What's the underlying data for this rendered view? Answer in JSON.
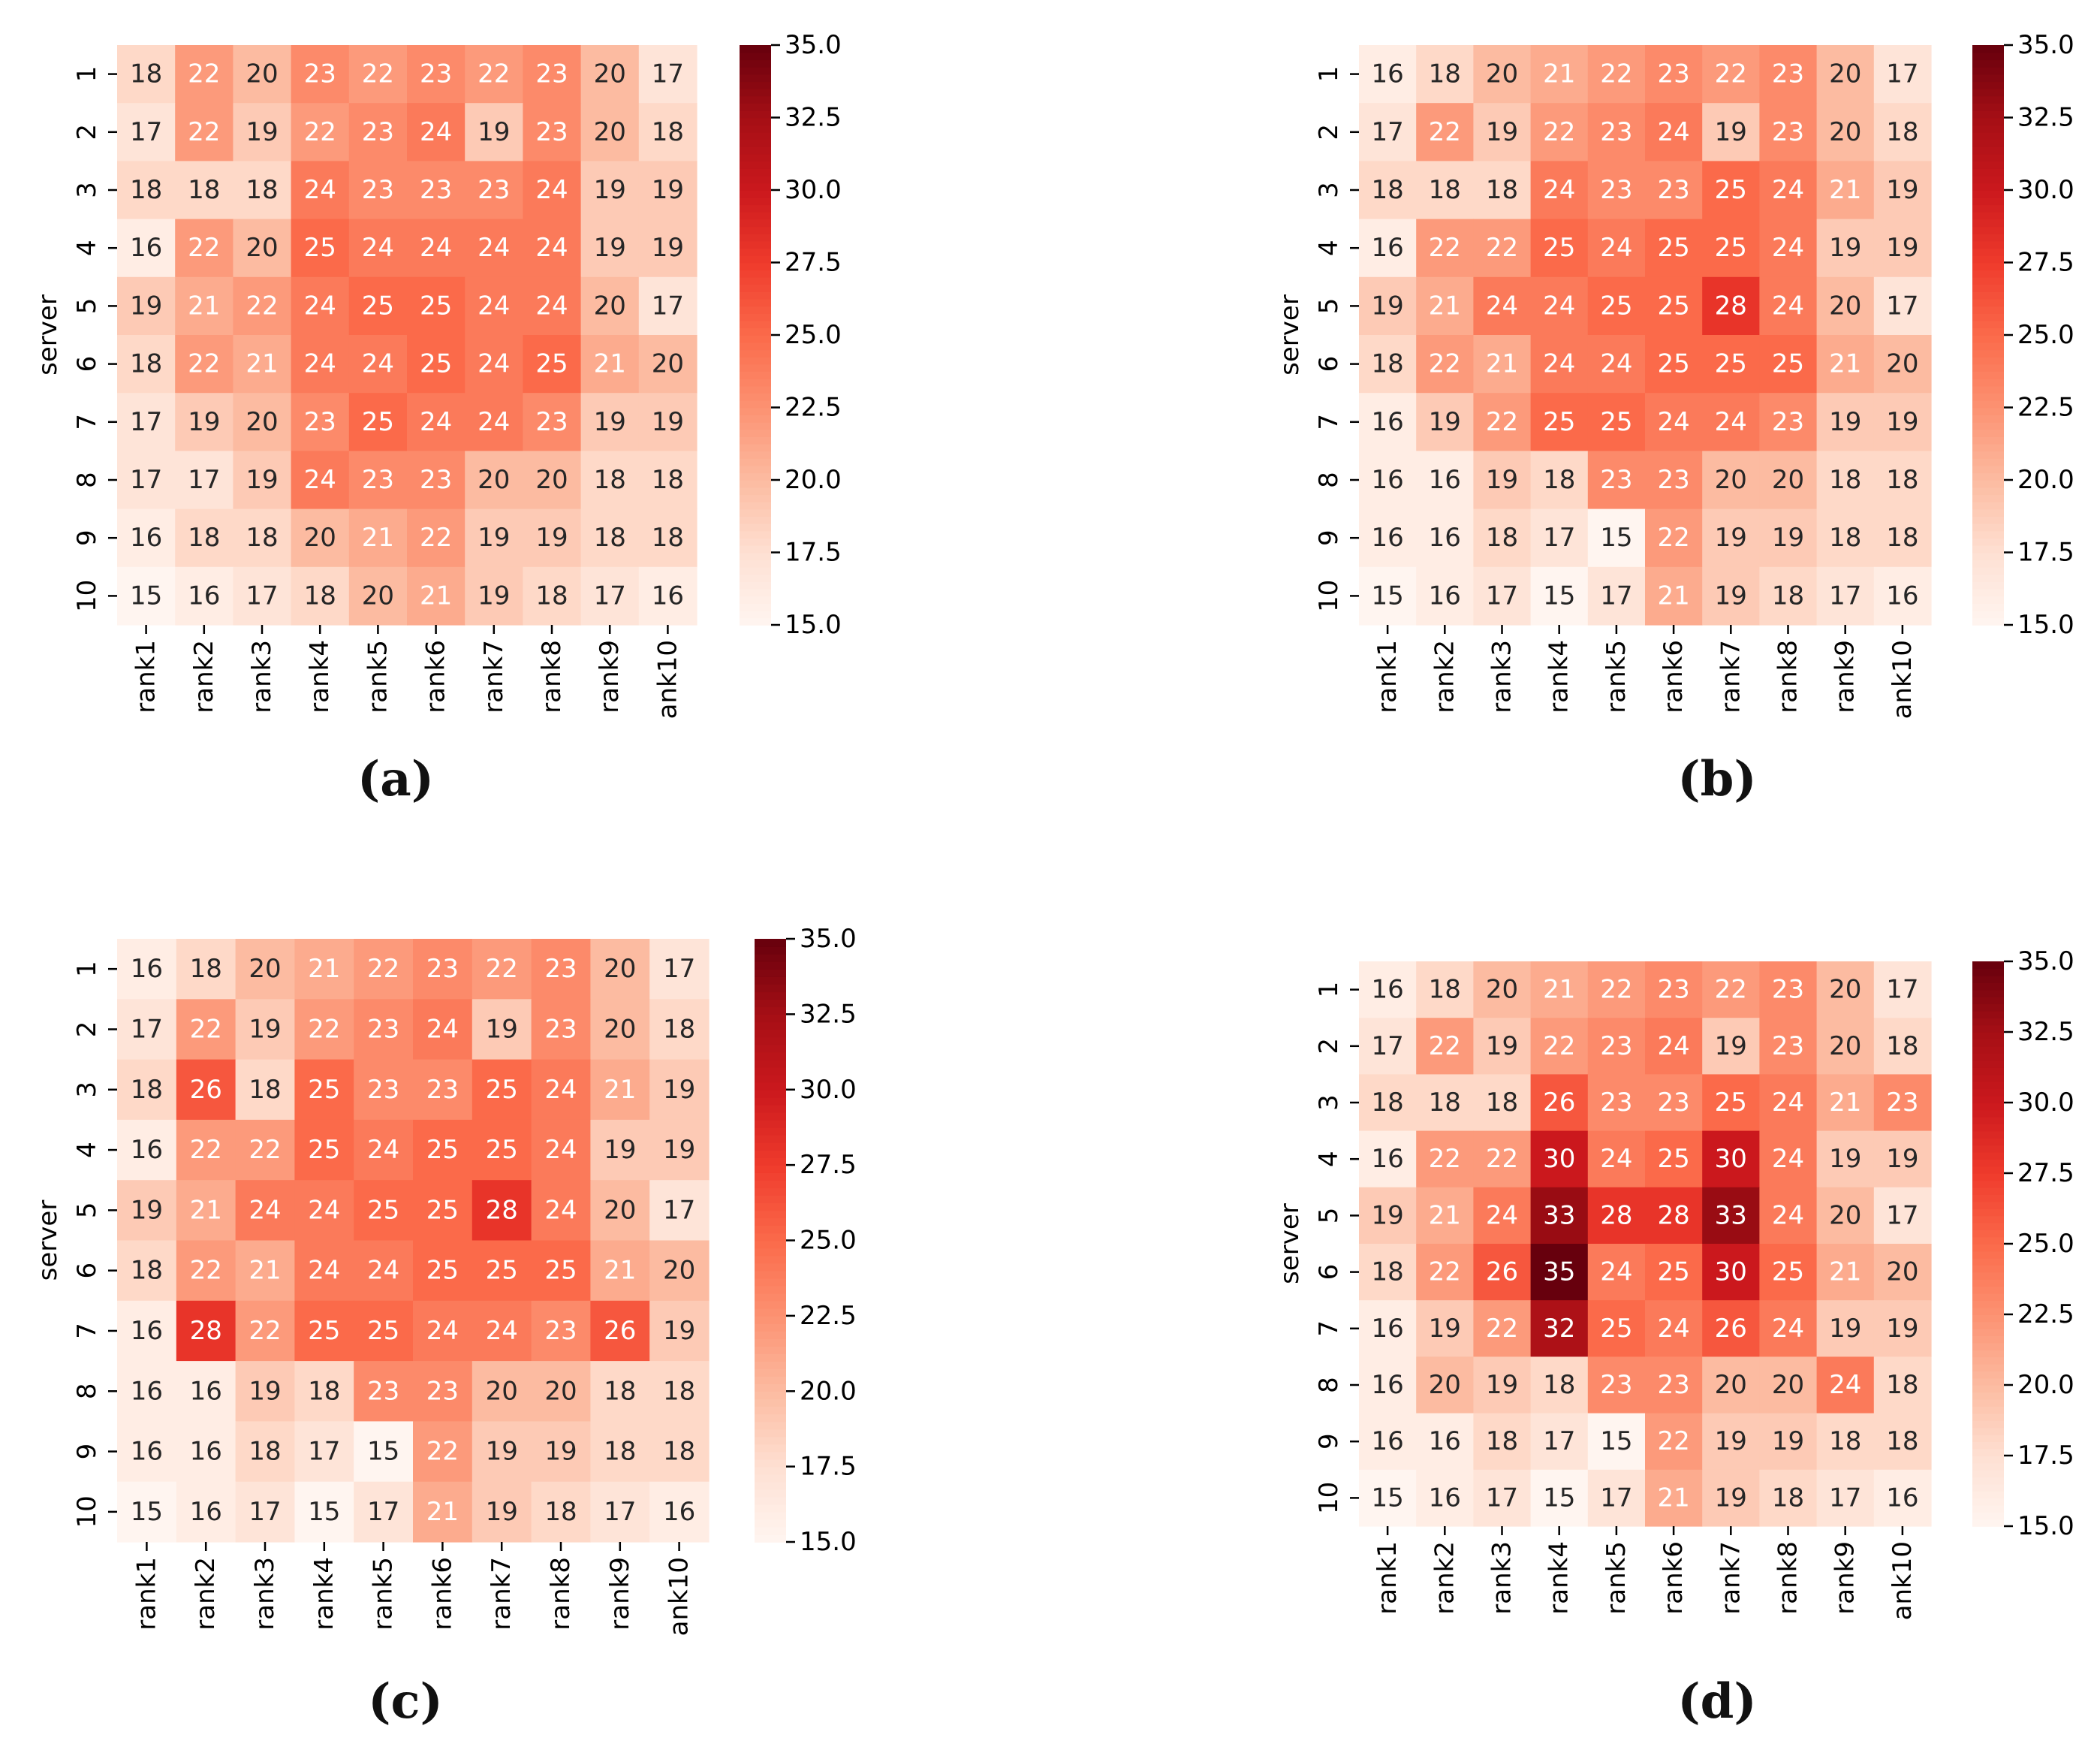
{
  "figure": {
    "panel_labels": [
      "(a)",
      "(b)",
      "(c)",
      "(d)"
    ]
  },
  "chart_data": [
    {
      "type": "heatmap",
      "panel": "a",
      "ylabel": "server",
      "xlabel": "",
      "columns": [
        "rank1",
        "rank2",
        "rank3",
        "rank4",
        "rank5",
        "rank6",
        "rank7",
        "rank8",
        "rank9",
        "ank10"
      ],
      "rows": [
        "1",
        "2",
        "3",
        "4",
        "5",
        "6",
        "7",
        "8",
        "9",
        "10"
      ],
      "values": [
        [
          18,
          22,
          20,
          23,
          22,
          23,
          22,
          23,
          20,
          17
        ],
        [
          17,
          22,
          19,
          22,
          23,
          24,
          19,
          23,
          20,
          18
        ],
        [
          18,
          18,
          18,
          24,
          23,
          23,
          23,
          24,
          19,
          19
        ],
        [
          16,
          22,
          20,
          25,
          24,
          24,
          24,
          24,
          19,
          19
        ],
        [
          19,
          21,
          22,
          24,
          25,
          25,
          24,
          24,
          20,
          17
        ],
        [
          18,
          22,
          21,
          24,
          24,
          25,
          24,
          25,
          21,
          20
        ],
        [
          17,
          19,
          20,
          23,
          25,
          24,
          24,
          23,
          19,
          19
        ],
        [
          17,
          17,
          19,
          24,
          23,
          23,
          20,
          20,
          18,
          18
        ],
        [
          16,
          18,
          18,
          20,
          21,
          22,
          19,
          19,
          18,
          18
        ],
        [
          15,
          16,
          17,
          18,
          20,
          21,
          19,
          18,
          17,
          16
        ]
      ],
      "colorbar": {
        "vmin": 15.0,
        "vmax": 35.0,
        "ticks": [
          "15.0",
          "17.5",
          "20.0",
          "22.5",
          "25.0",
          "27.5",
          "30.0",
          "32.5",
          "35.0"
        ],
        "colormap": "Reds"
      }
    },
    {
      "type": "heatmap",
      "panel": "b",
      "ylabel": "server",
      "xlabel": "",
      "columns": [
        "rank1",
        "rank2",
        "rank3",
        "rank4",
        "rank5",
        "rank6",
        "rank7",
        "rank8",
        "rank9",
        "ank10"
      ],
      "rows": [
        "1",
        "2",
        "3",
        "4",
        "5",
        "6",
        "7",
        "8",
        "9",
        "10"
      ],
      "values": [
        [
          16,
          18,
          20,
          21,
          22,
          23,
          22,
          23,
          20,
          17
        ],
        [
          17,
          22,
          19,
          22,
          23,
          24,
          19,
          23,
          20,
          18
        ],
        [
          18,
          18,
          18,
          24,
          23,
          23,
          25,
          24,
          21,
          19
        ],
        [
          16,
          22,
          22,
          25,
          24,
          25,
          25,
          24,
          19,
          19
        ],
        [
          19,
          21,
          24,
          24,
          25,
          25,
          28,
          24,
          20,
          17
        ],
        [
          18,
          22,
          21,
          24,
          24,
          25,
          25,
          25,
          21,
          20
        ],
        [
          16,
          19,
          22,
          25,
          25,
          24,
          24,
          23,
          19,
          19
        ],
        [
          16,
          16,
          19,
          18,
          23,
          23,
          20,
          20,
          18,
          18
        ],
        [
          16,
          16,
          18,
          17,
          15,
          22,
          19,
          19,
          18,
          18
        ],
        [
          15,
          16,
          17,
          15,
          17,
          21,
          19,
          18,
          17,
          16
        ]
      ],
      "colorbar": {
        "vmin": 15.0,
        "vmax": 35.0,
        "ticks": [
          "15.0",
          "17.5",
          "20.0",
          "22.5",
          "25.0",
          "27.5",
          "30.0",
          "32.5",
          "35.0"
        ],
        "colormap": "Reds"
      }
    },
    {
      "type": "heatmap",
      "panel": "c",
      "ylabel": "server",
      "xlabel": "",
      "columns": [
        "rank1",
        "rank2",
        "rank3",
        "rank4",
        "rank5",
        "rank6",
        "rank7",
        "rank8",
        "rank9",
        "ank10"
      ],
      "rows": [
        "1",
        "2",
        "3",
        "4",
        "5",
        "6",
        "7",
        "8",
        "9",
        "10"
      ],
      "values": [
        [
          16,
          18,
          20,
          21,
          22,
          23,
          22,
          23,
          20,
          17
        ],
        [
          17,
          22,
          19,
          22,
          23,
          24,
          19,
          23,
          20,
          18
        ],
        [
          18,
          26,
          18,
          25,
          23,
          23,
          25,
          24,
          21,
          19
        ],
        [
          16,
          22,
          22,
          25,
          24,
          25,
          25,
          24,
          19,
          19
        ],
        [
          19,
          21,
          24,
          24,
          25,
          25,
          28,
          24,
          20,
          17
        ],
        [
          18,
          22,
          21,
          24,
          24,
          25,
          25,
          25,
          21,
          20
        ],
        [
          16,
          28,
          22,
          25,
          25,
          24,
          24,
          23,
          26,
          19
        ],
        [
          16,
          16,
          19,
          18,
          23,
          23,
          20,
          20,
          18,
          18
        ],
        [
          16,
          16,
          18,
          17,
          15,
          22,
          19,
          19,
          18,
          18
        ],
        [
          15,
          16,
          17,
          15,
          17,
          21,
          19,
          18,
          17,
          16
        ]
      ],
      "colorbar": {
        "vmin": 15.0,
        "vmax": 35.0,
        "ticks": [
          "15.0",
          "17.5",
          "20.0",
          "22.5",
          "25.0",
          "27.5",
          "30.0",
          "32.5",
          "35.0"
        ],
        "colormap": "Reds"
      }
    },
    {
      "type": "heatmap",
      "panel": "d",
      "ylabel": "server",
      "xlabel": "",
      "columns": [
        "rank1",
        "rank2",
        "rank3",
        "rank4",
        "rank5",
        "rank6",
        "rank7",
        "rank8",
        "rank9",
        "ank10"
      ],
      "rows": [
        "1",
        "2",
        "3",
        "4",
        "5",
        "6",
        "7",
        "8",
        "9",
        "10"
      ],
      "values": [
        [
          16,
          18,
          20,
          21,
          22,
          23,
          22,
          23,
          20,
          17
        ],
        [
          17,
          22,
          19,
          22,
          23,
          24,
          19,
          23,
          20,
          18
        ],
        [
          18,
          18,
          18,
          26,
          23,
          23,
          25,
          24,
          21,
          23
        ],
        [
          16,
          22,
          22,
          30,
          24,
          25,
          30,
          24,
          19,
          19
        ],
        [
          19,
          21,
          24,
          33,
          28,
          28,
          33,
          24,
          20,
          17
        ],
        [
          18,
          22,
          26,
          35,
          24,
          25,
          30,
          25,
          21,
          20
        ],
        [
          16,
          19,
          22,
          32,
          25,
          24,
          26,
          24,
          19,
          19
        ],
        [
          16,
          20,
          19,
          18,
          23,
          23,
          20,
          20,
          24,
          18
        ],
        [
          16,
          16,
          18,
          17,
          15,
          22,
          19,
          19,
          18,
          18
        ],
        [
          15,
          16,
          17,
          15,
          17,
          21,
          19,
          18,
          17,
          16
        ]
      ],
      "colorbar": {
        "vmin": 15.0,
        "vmax": 35.0,
        "ticks": [
          "15.0",
          "17.5",
          "20.0",
          "22.5",
          "25.0",
          "27.5",
          "30.0",
          "32.5",
          "35.0"
        ],
        "colormap": "Reds"
      }
    }
  ]
}
